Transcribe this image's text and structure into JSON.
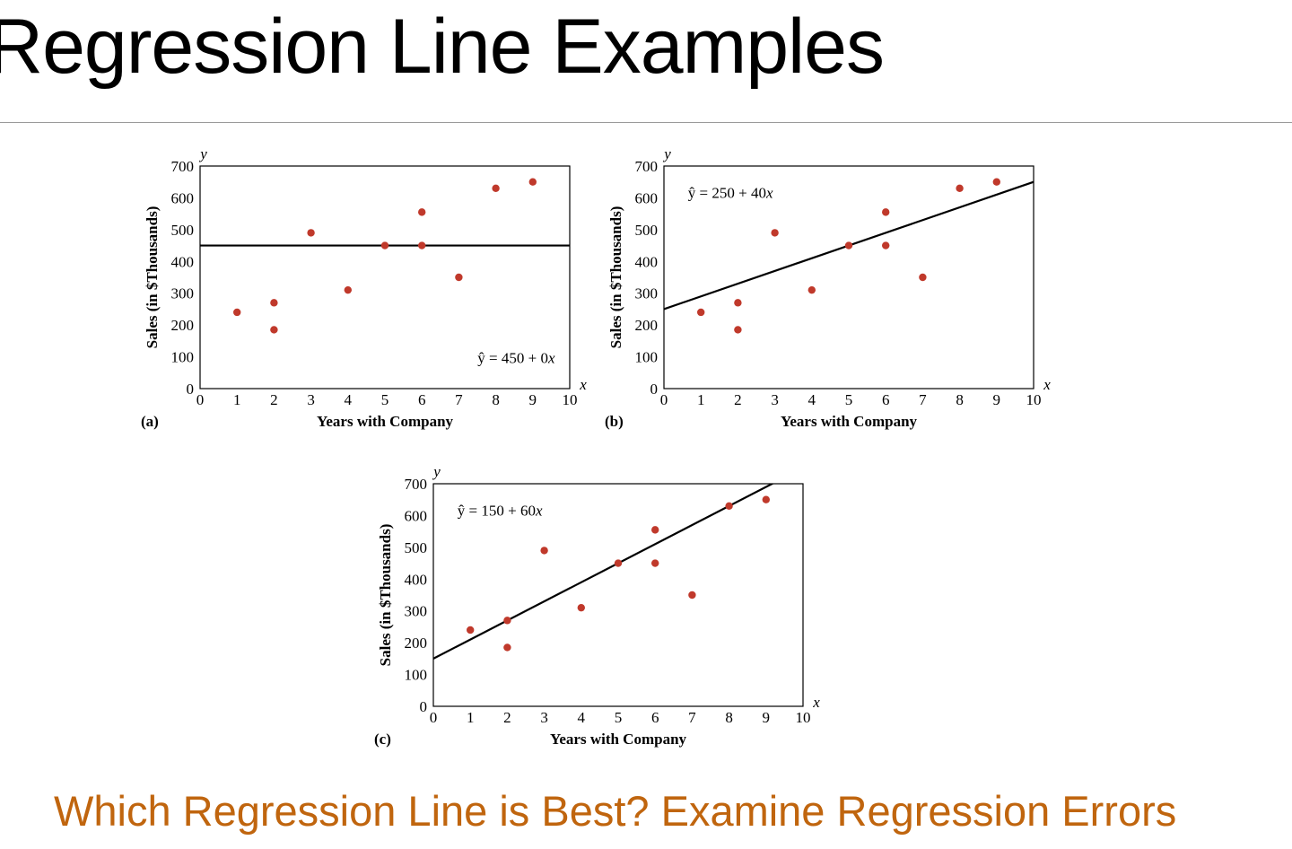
{
  "slide": {
    "title": "Regression Line Examples",
    "footer": "Which Regression Line is Best?  Examine Regression Errors",
    "footer_color": "#c0650e"
  },
  "colors": {
    "point": "#c0392b",
    "line": "#000000",
    "axis": "#000000"
  },
  "chart_data": [
    {
      "type": "scatter",
      "panel_label": "(a)",
      "xlabel": "Years with Company",
      "ylabel": "Sales (in $Thousands)",
      "x_axis_letter": "x",
      "y_axis_letter": "y",
      "xlim": [
        0,
        10
      ],
      "ylim": [
        0,
        700
      ],
      "xticks": [
        "0",
        "1",
        "2",
        "3",
        "4",
        "5",
        "6",
        "7",
        "8",
        "9",
        "10"
      ],
      "yticks": [
        "0",
        "100",
        "200",
        "300",
        "400",
        "500",
        "600",
        "700"
      ],
      "points": [
        [
          1,
          240
        ],
        [
          2,
          270
        ],
        [
          2,
          185
        ],
        [
          3,
          490
        ],
        [
          4,
          310
        ],
        [
          5,
          450
        ],
        [
          6,
          555
        ],
        [
          6,
          450
        ],
        [
          7,
          350
        ],
        [
          8,
          630
        ],
        [
          9,
          650
        ]
      ],
      "line": {
        "intercept": 450,
        "slope": 0
      },
      "equation": {
        "lhs": "ŷ = 450 + 0",
        "var": "x"
      },
      "equation_position": "bottom-right"
    },
    {
      "type": "scatter",
      "panel_label": "(b)",
      "xlabel": "Years with Company",
      "ylabel": "Sales (in $Thousands)",
      "x_axis_letter": "x",
      "y_axis_letter": "y",
      "xlim": [
        0,
        10
      ],
      "ylim": [
        0,
        700
      ],
      "xticks": [
        "0",
        "1",
        "2",
        "3",
        "4",
        "5",
        "6",
        "7",
        "8",
        "9",
        "10"
      ],
      "yticks": [
        "0",
        "100",
        "200",
        "300",
        "400",
        "500",
        "600",
        "700"
      ],
      "points": [
        [
          1,
          240
        ],
        [
          2,
          270
        ],
        [
          2,
          185
        ],
        [
          3,
          490
        ],
        [
          4,
          310
        ],
        [
          5,
          450
        ],
        [
          6,
          555
        ],
        [
          6,
          450
        ],
        [
          7,
          350
        ],
        [
          8,
          630
        ],
        [
          9,
          650
        ]
      ],
      "line": {
        "intercept": 250,
        "slope": 40
      },
      "equation": {
        "lhs": "ŷ = 250 + 40",
        "var": "x"
      },
      "equation_position": "top-left"
    },
    {
      "type": "scatter",
      "panel_label": "(c)",
      "xlabel": "Years with Company",
      "ylabel": "Sales (in $Thousands)",
      "x_axis_letter": "x",
      "y_axis_letter": "y",
      "xlim": [
        0,
        10
      ],
      "ylim": [
        0,
        700
      ],
      "xticks": [
        "0",
        "1",
        "2",
        "3",
        "4",
        "5",
        "6",
        "7",
        "8",
        "9",
        "10"
      ],
      "yticks": [
        "0",
        "100",
        "200",
        "300",
        "400",
        "500",
        "600",
        "700"
      ],
      "points": [
        [
          1,
          240
        ],
        [
          2,
          270
        ],
        [
          2,
          185
        ],
        [
          3,
          490
        ],
        [
          4,
          310
        ],
        [
          5,
          450
        ],
        [
          6,
          555
        ],
        [
          6,
          450
        ],
        [
          7,
          350
        ],
        [
          8,
          630
        ],
        [
          9,
          650
        ]
      ],
      "line": {
        "intercept": 150,
        "slope": 60
      },
      "equation": {
        "lhs": "ŷ = 150 + 60",
        "var": "x"
      },
      "equation_position": "top-left"
    }
  ]
}
